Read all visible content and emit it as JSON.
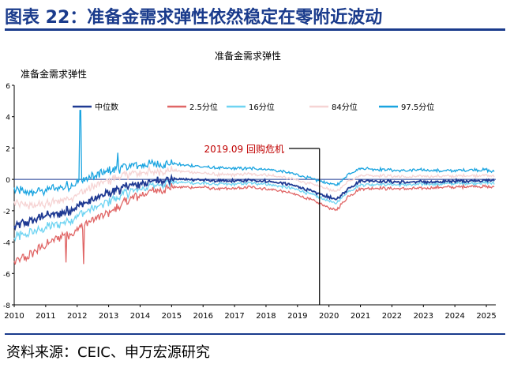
{
  "header": {
    "title": "图表 22：准备金需求弹性依然稳定在零附近波动"
  },
  "footer": {
    "source": "资料来源：CEIC、申万宏源研究"
  },
  "chart_data": {
    "type": "line",
    "title": "准备金需求弹性",
    "ylabel": "准备金需求弹性",
    "xlabel": "",
    "xlim": [
      2010.0,
      2025.3
    ],
    "ylim": [
      -8,
      6
    ],
    "yticks": [
      -8,
      -6,
      -4,
      -2,
      0,
      2,
      4,
      6
    ],
    "xtick_labels": [
      "2010",
      "2011",
      "2012",
      "2013",
      "2014",
      "2015",
      "2016",
      "2017",
      "2018",
      "2019",
      "2020",
      "2021",
      "2022",
      "2023",
      "2024",
      "2025"
    ],
    "grid": false,
    "legend_position": "top",
    "colors": {
      "median": "#1f3a93",
      "p2_5": "#e06666",
      "p16": "#6fd4f2",
      "p84": "#f6d4d4",
      "p97_5": "#1aa4e0",
      "annotation": "#c00000",
      "header": "#1a3b8c"
    },
    "annotation": {
      "text": "2019.09 回购危机",
      "x": 2019.7
    },
    "x": [
      2010.0,
      2010.5,
      2011.0,
      2011.5,
      2011.9,
      2012.1,
      2012.5,
      2013.0,
      2013.5,
      2014.0,
      2014.5,
      2015.0,
      2015.5,
      2016.0,
      2016.5,
      2017.0,
      2017.5,
      2018.0,
      2018.5,
      2019.0,
      2019.5,
      2019.9,
      2020.2,
      2020.4,
      2020.6,
      2021.0,
      2021.5,
      2022.0,
      2022.5,
      2023.0,
      2023.5,
      2024.0,
      2024.5,
      2025.0,
      2025.2
    ],
    "series": [
      {
        "name": "中位数",
        "key": "median",
        "values": [
          -3.0,
          -2.7,
          -2.3,
          -2.2,
          -1.8,
          -1.6,
          -1.3,
          -0.9,
          -0.5,
          -0.3,
          -0.1,
          0.0,
          0.0,
          -0.05,
          -0.1,
          -0.1,
          -0.05,
          -0.1,
          -0.25,
          -0.45,
          -0.8,
          -1.05,
          -1.3,
          -1.0,
          -0.6,
          -0.1,
          -0.1,
          -0.15,
          -0.2,
          -0.15,
          -0.15,
          -0.1,
          -0.1,
          -0.05,
          -0.1
        ]
      },
      {
        "name": "2.5分位",
        "key": "p2_5",
        "values": [
          -5.3,
          -4.8,
          -4.2,
          -3.6,
          -3.4,
          -3.0,
          -2.6,
          -2.1,
          -1.5,
          -1.0,
          -0.7,
          -0.5,
          -0.5,
          -0.5,
          -0.6,
          -0.6,
          -0.5,
          -0.6,
          -0.75,
          -1.0,
          -1.35,
          -1.7,
          -2.0,
          -1.6,
          -1.1,
          -0.6,
          -0.55,
          -0.6,
          -0.6,
          -0.55,
          -0.5,
          -0.5,
          -0.45,
          -0.45,
          -0.5
        ]
      },
      {
        "name": "16分位",
        "key": "p16",
        "values": [
          -3.7,
          -3.4,
          -3.1,
          -2.8,
          -2.5,
          -2.2,
          -1.9,
          -1.4,
          -0.9,
          -0.6,
          -0.35,
          -0.2,
          -0.2,
          -0.25,
          -0.3,
          -0.3,
          -0.25,
          -0.3,
          -0.45,
          -0.65,
          -1.0,
          -1.3,
          -1.55,
          -1.2,
          -0.8,
          -0.35,
          -0.3,
          -0.35,
          -0.35,
          -0.3,
          -0.3,
          -0.25,
          -0.25,
          -0.2,
          -0.25
        ]
      },
      {
        "name": "84分位",
        "key": "p84",
        "values": [
          -1.5,
          -1.7,
          -1.6,
          -1.3,
          -1.1,
          -0.9,
          -0.5,
          -0.1,
          0.3,
          0.4,
          0.5,
          0.55,
          0.5,
          0.4,
          0.3,
          0.3,
          0.35,
          0.3,
          0.15,
          -0.05,
          -0.35,
          -0.55,
          -0.8,
          -0.5,
          -0.1,
          0.25,
          0.25,
          0.2,
          0.15,
          0.2,
          0.2,
          0.2,
          0.25,
          0.25,
          0.2
        ]
      },
      {
        "name": "97.5分位",
        "key": "p97_5",
        "values": [
          -0.6,
          -0.9,
          -0.7,
          -0.5,
          -0.3,
          -0.1,
          0.2,
          0.5,
          0.8,
          0.9,
          1.0,
          1.0,
          0.9,
          0.8,
          0.7,
          0.7,
          0.7,
          0.65,
          0.5,
          0.3,
          0.0,
          -0.2,
          -0.4,
          -0.1,
          0.3,
          0.7,
          0.65,
          0.6,
          0.55,
          0.6,
          0.55,
          0.55,
          0.6,
          0.6,
          0.5
        ]
      }
    ]
  }
}
